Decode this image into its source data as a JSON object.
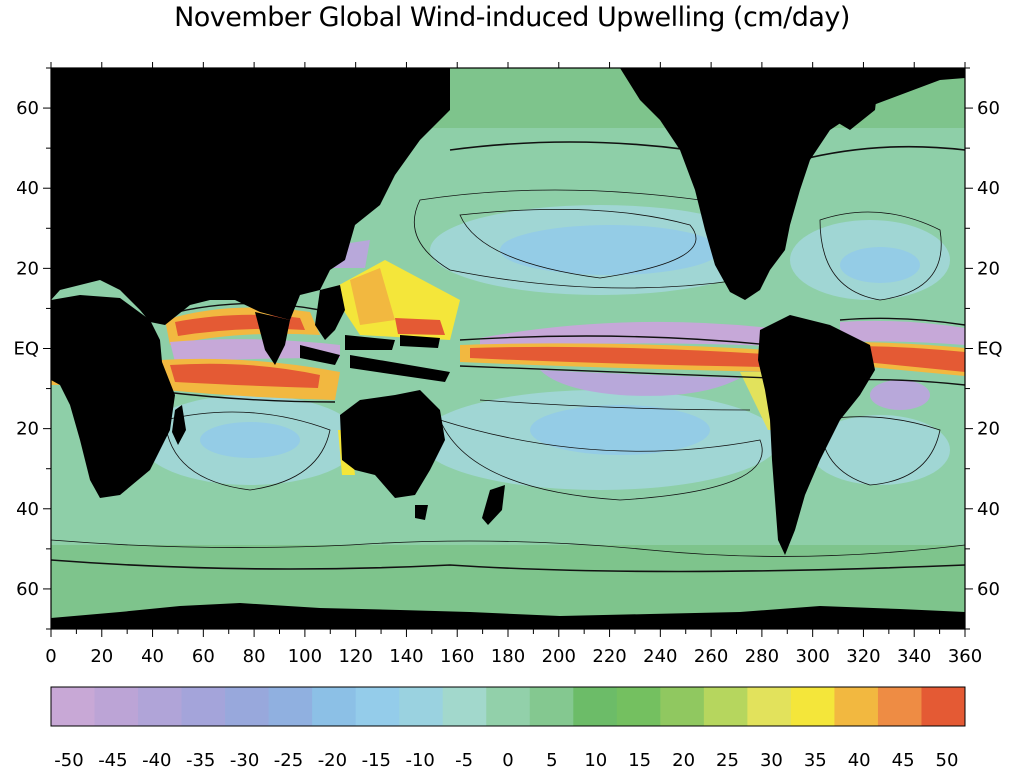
{
  "title": "November Global Wind-induced Upwelling (cm/day)",
  "map": {
    "longitude_range": [
      0,
      360
    ],
    "latitude_range": [
      -70,
      70
    ],
    "land_color": "#000000"
  },
  "axes": {
    "x_ticks": [
      "0",
      "20",
      "40",
      "60",
      "80",
      "100",
      "120",
      "140",
      "160",
      "180",
      "200",
      "220",
      "240",
      "260",
      "280",
      "300",
      "320",
      "340",
      "360"
    ],
    "y_ticks_left": [
      {
        "lat": 60,
        "label": "60"
      },
      {
        "lat": 40,
        "label": "40"
      },
      {
        "lat": 20,
        "label": "20"
      },
      {
        "lat": 0,
        "label": "EQ"
      },
      {
        "lat": -20,
        "label": "20"
      },
      {
        "lat": -40,
        "label": "40"
      },
      {
        "lat": -60,
        "label": "60"
      }
    ]
  },
  "colorbar": {
    "labels": [
      "-50",
      "-45",
      "-40",
      "-35",
      "-30",
      "-25",
      "-20",
      "-15",
      "-10",
      "-5",
      "0",
      "5",
      "10",
      "15",
      "20",
      "25",
      "30",
      "35",
      "40",
      "45",
      "50"
    ],
    "colors": [
      "#c8a8d6",
      "#bca4d6",
      "#b0a4d8",
      "#a4a4da",
      "#98a8dc",
      "#90b0e0",
      "#8cc0e6",
      "#94ccea",
      "#9ad2e0",
      "#a2d8cc",
      "#92d0aa",
      "#84c890",
      "#6cbc68",
      "#74c060",
      "#90c860",
      "#b6d65e",
      "#e2e25c",
      "#f4e63a",
      "#f2b840",
      "#ee8c44",
      "#e45a34"
    ]
  }
}
